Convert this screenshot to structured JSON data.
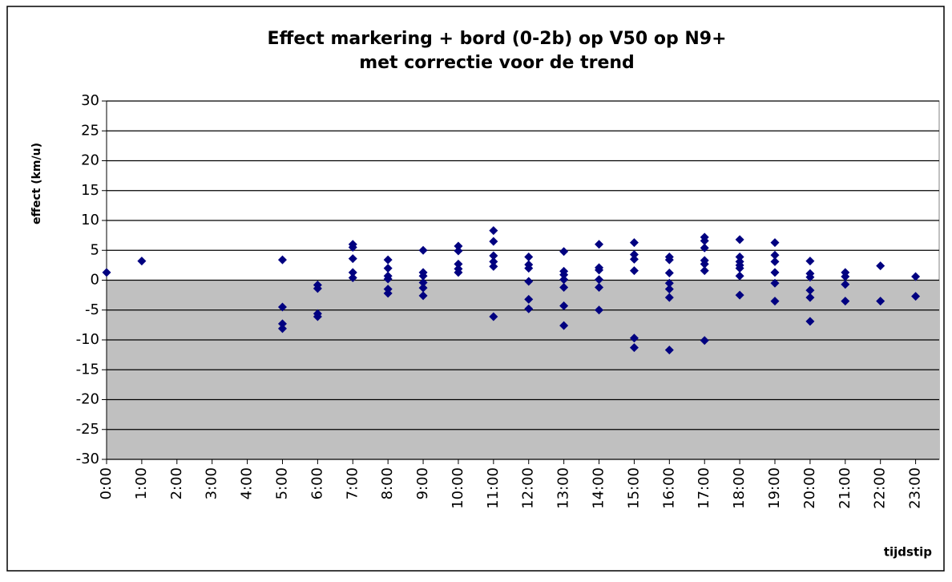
{
  "chart_data": {
    "type": "scatter",
    "title": [
      "Effect markering + bord (0-2b) op V50 op N9+",
      "met correctie voor de trend"
    ],
    "y_label": "effect (km/u)",
    "x_label": "tijdstip",
    "color": "#000080",
    "below_zero_fill": "#c0c0c0",
    "grid": true,
    "xlim": [
      0,
      23.67
    ],
    "ylim": [
      -30,
      30
    ],
    "yticks": [
      -30,
      -25,
      -20,
      -15,
      -10,
      -5,
      0,
      5,
      10,
      15,
      20,
      25,
      30
    ],
    "xticks": [
      {
        "value": 0,
        "label": "0:00"
      },
      {
        "value": 1,
        "label": "1:00"
      },
      {
        "value": 2,
        "label": "2:00"
      },
      {
        "value": 3,
        "label": "3:00"
      },
      {
        "value": 4,
        "label": "4:00"
      },
      {
        "value": 5,
        "label": "5:00"
      },
      {
        "value": 6,
        "label": "6:00"
      },
      {
        "value": 7,
        "label": "7:00"
      },
      {
        "value": 8,
        "label": "8:00"
      },
      {
        "value": 9,
        "label": "9:00"
      },
      {
        "value": 10,
        "label": "10:00"
      },
      {
        "value": 11,
        "label": "11:00"
      },
      {
        "value": 12,
        "label": "12:00"
      },
      {
        "value": 13,
        "label": "13:00"
      },
      {
        "value": 14,
        "label": "14:00"
      },
      {
        "value": 15,
        "label": "15:00"
      },
      {
        "value": 16,
        "label": "16:00"
      },
      {
        "value": 17,
        "label": "17:00"
      },
      {
        "value": 18,
        "label": "18:00"
      },
      {
        "value": 19,
        "label": "19:00"
      },
      {
        "value": 20,
        "label": "20:00"
      },
      {
        "value": 21,
        "label": "21:00"
      },
      {
        "value": 22,
        "label": "22:00"
      },
      {
        "value": 23,
        "label": "23:00"
      }
    ],
    "x": [
      0,
      1,
      5,
      5,
      5,
      5,
      6,
      6,
      6,
      6,
      7,
      7,
      7,
      7,
      7,
      8,
      8,
      8,
      8,
      8,
      8,
      9,
      9,
      9,
      9,
      9,
      9,
      10,
      10,
      10,
      10,
      10,
      11,
      11,
      11,
      11,
      11,
      11,
      12,
      12,
      12,
      12,
      12,
      12,
      13,
      13,
      13,
      13,
      13,
      13,
      13,
      14,
      14,
      14,
      14,
      14,
      14,
      15,
      15,
      15,
      15,
      15,
      15,
      16,
      16,
      16,
      16,
      16,
      16,
      16,
      17,
      17,
      17,
      17,
      17,
      17,
      17,
      18,
      18,
      18,
      18,
      18,
      18,
      18,
      19,
      19,
      19,
      19,
      19,
      19,
      20,
      20,
      20,
      20,
      20,
      20,
      21,
      21,
      21,
      21,
      22,
      22,
      23,
      23
    ],
    "values": [
      1.3,
      3.2,
      3.4,
      -4.5,
      -7.3,
      -8.1,
      -0.8,
      -1.4,
      -5.6,
      -6.1,
      6.0,
      5.5,
      3.6,
      1.3,
      0.4,
      3.4,
      2.0,
      0.7,
      0.2,
      -1.5,
      -2.2,
      5.0,
      1.3,
      0.7,
      -0.4,
      -1.3,
      -2.6,
      5.7,
      4.9,
      2.7,
      1.9,
      1.3,
      8.3,
      6.5,
      4.1,
      3.1,
      2.3,
      -6.1,
      3.9,
      2.6,
      2.0,
      -0.2,
      -3.2,
      -4.8,
      4.8,
      1.5,
      0.9,
      0.1,
      -1.2,
      -4.3,
      -7.6,
      6.0,
      2.1,
      1.7,
      0.1,
      -1.2,
      -5.0,
      6.3,
      4.3,
      3.5,
      1.6,
      -9.7,
      -11.3,
      3.9,
      3.4,
      1.2,
      -0.5,
      -1.5,
      -2.9,
      -11.7,
      7.2,
      6.6,
      5.4,
      3.3,
      2.7,
      1.6,
      -10.1,
      6.8,
      3.9,
      3.1,
      2.5,
      2.0,
      0.7,
      -2.5,
      6.3,
      4.2,
      3.1,
      1.3,
      -0.5,
      -3.5,
      3.2,
      1.1,
      0.5,
      -1.7,
      -2.9,
      -6.9,
      1.3,
      0.6,
      -0.7,
      -3.5,
      2.4,
      -3.5,
      0.6,
      -2.7
    ]
  }
}
